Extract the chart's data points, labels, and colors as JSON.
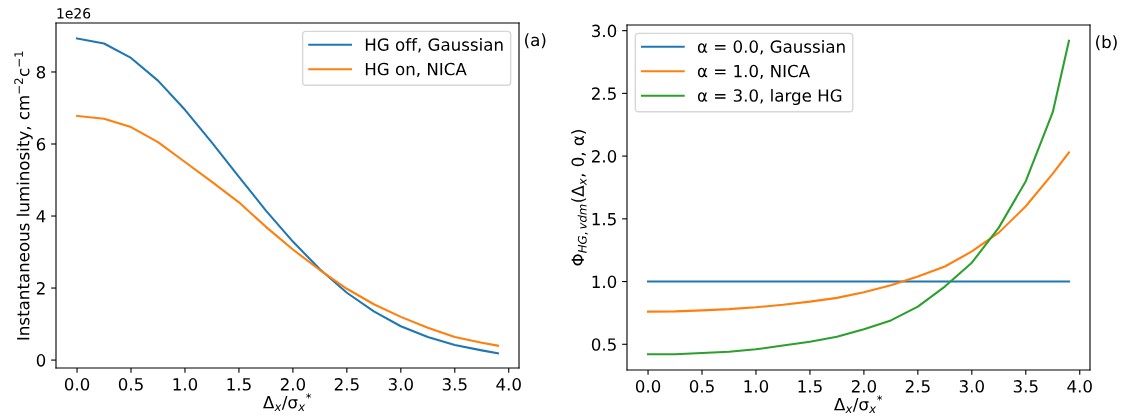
{
  "chart_data": [
    {
      "type": "line",
      "xlabel": "Δ$_{x}$/σ$_{x}$$^{*}$",
      "ylabel": "Instantaneous luminosity, cm$^{−2}$c$^{−1}$",
      "annotations": [
        "1e26",
        "(a)"
      ],
      "x": [
        0,
        0.25,
        0.5,
        0.75,
        1.0,
        1.25,
        1.5,
        1.75,
        2.0,
        2.25,
        2.5,
        2.75,
        3.0,
        3.25,
        3.5,
        3.75,
        3.9
      ],
      "series": [
        {
          "name": "HG off, Gaussian",
          "color": "#1f77b4",
          "values": [
            8.93,
            8.79,
            8.39,
            7.76,
            6.95,
            6.04,
            5.09,
            4.15,
            3.29,
            2.52,
            1.87,
            1.35,
            0.94,
            0.64,
            0.42,
            0.27,
            0.19
          ]
        },
        {
          "name": "HG on, NICA",
          "color": "#ff7f0e",
          "values": [
            6.78,
            6.7,
            6.47,
            6.05,
            5.5,
            4.95,
            4.38,
            3.7,
            3.07,
            2.5,
            1.98,
            1.55,
            1.2,
            0.9,
            0.64,
            0.48,
            0.4
          ]
        }
      ],
      "xlim": [
        -0.195,
        4.095
      ],
      "xticks": [
        {
          "value": 0,
          "label": "0.0"
        },
        {
          "value": 0.5,
          "label": "0.5"
        },
        {
          "value": 1,
          "label": "1.0"
        },
        {
          "value": 1.5,
          "label": "1.5"
        },
        {
          "value": 2,
          "label": "2.0"
        },
        {
          "value": 2.5,
          "label": "2.5"
        },
        {
          "value": 3,
          "label": "3.0"
        },
        {
          "value": 3.5,
          "label": "3.5"
        },
        {
          "value": 4,
          "label": "4.0"
        }
      ],
      "ylim": [
        -0.22,
        9.36
      ],
      "yticks": [
        0,
        2,
        4,
        6,
        8
      ],
      "legend": "top right",
      "grid": false
    },
    {
      "type": "line",
      "xlabel": "Δ$_{x}$/σ$_{x}$$^{*}$",
      "ylabel": "Φ$_{HG,vdm}$(Δ$_{x}$, 0, α)",
      "annotations": [
        "(b)"
      ],
      "x": [
        0,
        0.25,
        0.5,
        0.75,
        1.0,
        1.25,
        1.5,
        1.75,
        2.0,
        2.25,
        2.5,
        2.75,
        3.0,
        3.25,
        3.5,
        3.75,
        3.9
      ],
      "series": [
        {
          "name": "α = 0.0, Gaussian",
          "color": "#1f77b4",
          "values": [
            1,
            1,
            1,
            1,
            1,
            1,
            1,
            1,
            1,
            1,
            1,
            1,
            1,
            1,
            1,
            1,
            1
          ]
        },
        {
          "name": "α = 1.0, NICA",
          "color": "#ff7f0e",
          "values": [
            0.76,
            0.762,
            0.77,
            0.78,
            0.795,
            0.815,
            0.84,
            0.87,
            0.915,
            0.97,
            1.04,
            1.12,
            1.24,
            1.39,
            1.6,
            1.86,
            2.03
          ]
        },
        {
          "name": "α = 3.0, large HG",
          "color": "#2ca02c",
          "values": [
            0.42,
            0.42,
            0.43,
            0.44,
            0.46,
            0.49,
            0.52,
            0.56,
            0.62,
            0.69,
            0.8,
            0.96,
            1.15,
            1.43,
            1.8,
            2.35,
            2.92
          ]
        }
      ],
      "xlim": [
        -0.195,
        4.095
      ],
      "xticks": [
        {
          "value": 0,
          "label": "0.0"
        },
        {
          "value": 0.5,
          "label": "0.5"
        },
        {
          "value": 1,
          "label": "1.0"
        },
        {
          "value": 1.5,
          "label": "1.5"
        },
        {
          "value": 2,
          "label": "2.0"
        },
        {
          "value": 2.5,
          "label": "2.5"
        },
        {
          "value": 3,
          "label": "3.0"
        },
        {
          "value": 3.5,
          "label": "3.5"
        },
        {
          "value": 4,
          "label": "4.0"
        }
      ],
      "ylim": [
        0.295,
        3.045
      ],
      "yticks": [
        {
          "value": 0.5,
          "label": "0.5"
        },
        {
          "value": 1,
          "label": "1.0"
        },
        {
          "value": 1.5,
          "label": "1.5"
        },
        {
          "value": 2,
          "label": "2.0"
        },
        {
          "value": 2.5,
          "label": "2.5"
        },
        {
          "value": 3,
          "label": "3.0"
        }
      ],
      "legend": "top left",
      "grid": false
    }
  ]
}
